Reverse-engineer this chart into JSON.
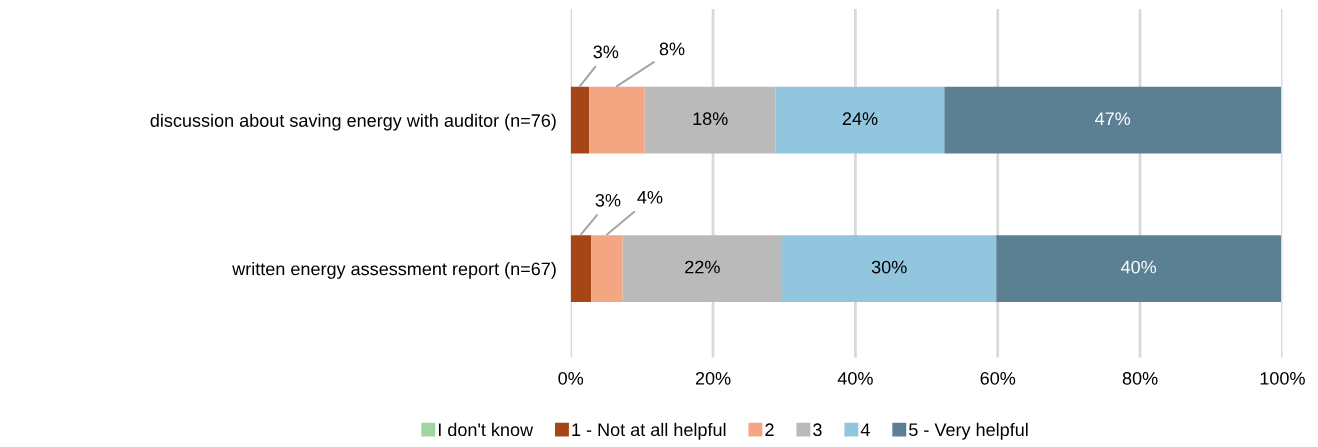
{
  "chart_data": {
    "type": "bar",
    "orientation": "horizontal",
    "stacked": true,
    "categories": [
      "discussion about saving energy with auditor (n=76)",
      "written energy assessment report (n=67)"
    ],
    "series": [
      {
        "name": "I don't know",
        "color": "#9fd5a0",
        "values": [
          0,
          0
        ],
        "value_labels": [
          null,
          null
        ]
      },
      {
        "name": "1 - Not at all helpful",
        "color": "#a64617",
        "values": [
          2.6,
          2.9
        ],
        "value_labels": [
          "3%",
          "3%"
        ]
      },
      {
        "name": "2",
        "color": "#f4a582",
        "values": [
          7.8,
          4.4
        ],
        "value_labels": [
          "8%",
          "4%"
        ]
      },
      {
        "name": "3",
        "color": "#bababa",
        "values": [
          18.4,
          22.4
        ],
        "value_labels": [
          "18%",
          "22%"
        ]
      },
      {
        "name": "4",
        "color": "#92c5de",
        "values": [
          23.7,
          30.1
        ],
        "value_labels": [
          "24%",
          "30%"
        ]
      },
      {
        "name": "5 - Very helpful",
        "color": "#5b7f93",
        "values": [
          47.3,
          40.0
        ],
        "value_labels": [
          "47%",
          "40%"
        ]
      }
    ],
    "xlim": [
      0,
      100
    ],
    "xticks": [
      {
        "value": 0,
        "label": "0%"
      },
      {
        "value": 20,
        "label": "20%"
      },
      {
        "value": 40,
        "label": "40%"
      },
      {
        "value": 60,
        "label": "60%"
      },
      {
        "value": 80,
        "label": "80%"
      },
      {
        "value": 100,
        "label": "100%"
      }
    ],
    "grid": "x",
    "legend": "bottom"
  }
}
